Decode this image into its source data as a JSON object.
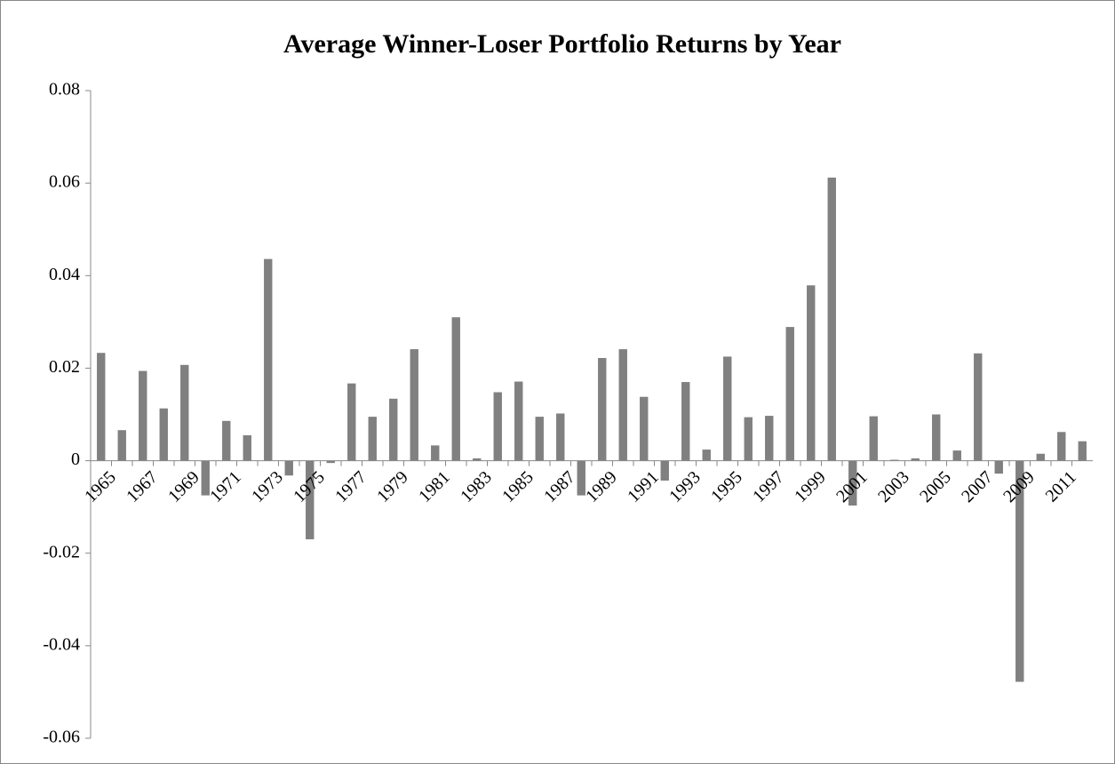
{
  "chart_data": {
    "type": "bar",
    "title": "Average Winner-Loser Portfolio Returns by Year",
    "categories": [
      "1965",
      null,
      "1967",
      null,
      "1969",
      null,
      "1971",
      null,
      "1973",
      null,
      "1975",
      null,
      "1977",
      null,
      "1979",
      null,
      "1981",
      null,
      "1983",
      null,
      "1985",
      null,
      "1987",
      null,
      "1989",
      null,
      "1991",
      null,
      "1993",
      null,
      "1995",
      null,
      "1997",
      null,
      "1999",
      null,
      "2001",
      null,
      "2003",
      null,
      "2005",
      null,
      "2007",
      null,
      "2009",
      null,
      "2011",
      null
    ],
    "values": [
      0.0233,
      0.0066,
      0.0194,
      0.0113,
      0.0207,
      -0.0075,
      0.0086,
      0.0055,
      0.0436,
      -0.0032,
      -0.017,
      -0.0005,
      0.0167,
      0.0095,
      0.0134,
      0.0241,
      0.0033,
      0.031,
      0.0005,
      0.0148,
      0.0171,
      0.0095,
      0.0102,
      -0.0075,
      0.0222,
      0.0241,
      0.0138,
      -0.0043,
      0.017,
      0.0024,
      0.0225,
      0.0094,
      0.0097,
      0.0289,
      0.0379,
      0.0612,
      -0.0097,
      0.0096,
      0.0002,
      0.0005,
      0.01,
      0.0022,
      0.0232,
      -0.0028,
      -0.0478,
      0.0015,
      0.0062,
      0.0042
    ],
    "color": "#808080",
    "ylim": [
      -0.06,
      0.08
    ],
    "yticks": [
      -0.06,
      -0.04,
      -0.02,
      0,
      0.02,
      0.04,
      0.06,
      0.08
    ],
    "grid": false
  }
}
